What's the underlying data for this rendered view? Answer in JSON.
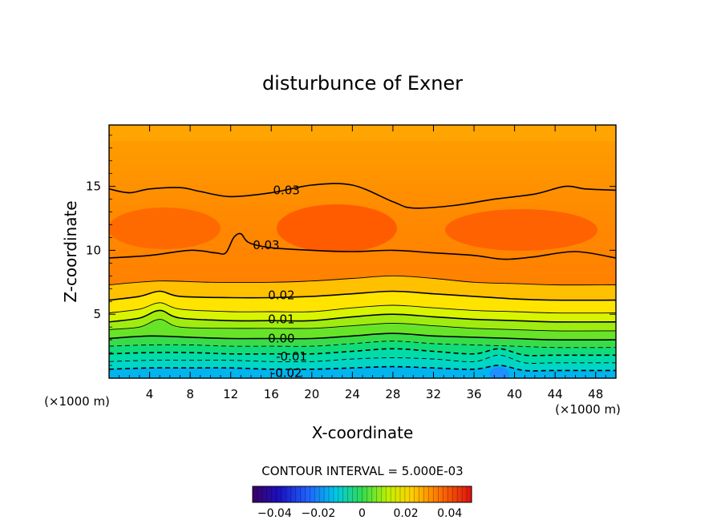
{
  "chart_data": {
    "type": "heatmap",
    "title": "disturbunce of Exner",
    "xlabel": "X-coordinate",
    "ylabel": "Z-coordinate",
    "x_unit_left": "(×1000 m)",
    "x_unit_right": "(×1000 m)",
    "xlim": [
      0,
      50
    ],
    "ylim": [
      0,
      19.8
    ],
    "x_ticks": [
      4,
      8,
      12,
      16,
      20,
      24,
      28,
      32,
      36,
      40,
      44,
      48
    ],
    "y_ticks": [
      5,
      10,
      15
    ],
    "contour_interval_text": "CONTOUR INTERVAL = 5.000E-03",
    "colorbar": {
      "min": -0.05,
      "max": 0.05,
      "ticks": [
        -0.04,
        -0.02,
        0,
        0.02,
        0.04
      ],
      "tick_labels": [
        "−0.04",
        "−0.02",
        "0",
        "0.02",
        "0.04"
      ]
    },
    "contour_labels": [
      {
        "text": "0.03",
        "x": 17.5,
        "z": 14.7
      },
      {
        "text": "0.03",
        "x": 15.5,
        "z": 10.4
      },
      {
        "text": "0.02",
        "x": 17.0,
        "z": 6.5
      },
      {
        "text": "0.01",
        "x": 17.0,
        "z": 4.6
      },
      {
        "text": "0.00",
        "x": 17.0,
        "z": 3.1
      },
      {
        "text": "-0.01",
        "x": 18.0,
        "z": 1.7
      },
      {
        "text": "-0.02",
        "x": 17.5,
        "z": 0.4
      }
    ],
    "contour_levels": [
      {
        "level": -0.02,
        "dashed": true,
        "points": [
          [
            0,
            0.7
          ],
          [
            4,
            0.8
          ],
          [
            8,
            0.8
          ],
          [
            12,
            0.8
          ],
          [
            16,
            0.7
          ],
          [
            20,
            0.7
          ],
          [
            24,
            0.8
          ],
          [
            28,
            0.9
          ],
          [
            32,
            0.8
          ],
          [
            36,
            0.7
          ],
          [
            38.5,
            1.0
          ],
          [
            41,
            0.6
          ],
          [
            44,
            0.6
          ],
          [
            50,
            0.6
          ]
        ]
      },
      {
        "level": -0.015,
        "dashed": true,
        "points": [
          [
            0,
            1.3
          ],
          [
            4,
            1.4
          ],
          [
            8,
            1.4
          ],
          [
            12,
            1.4
          ],
          [
            16,
            1.3
          ],
          [
            20,
            1.3
          ],
          [
            24,
            1.5
          ],
          [
            28,
            1.6
          ],
          [
            32,
            1.5
          ],
          [
            36,
            1.3
          ],
          [
            38.5,
            1.8
          ],
          [
            41,
            1.2
          ],
          [
            44,
            1.2
          ],
          [
            50,
            1.2
          ]
        ]
      },
      {
        "level": -0.01,
        "dashed": true,
        "points": [
          [
            0,
            1.9
          ],
          [
            4,
            2.0
          ],
          [
            8,
            2.0
          ],
          [
            12,
            1.9
          ],
          [
            16,
            1.9
          ],
          [
            20,
            1.9
          ],
          [
            24,
            2.1
          ],
          [
            28,
            2.3
          ],
          [
            32,
            2.1
          ],
          [
            36,
            1.9
          ],
          [
            38.5,
            2.3
          ],
          [
            41,
            1.8
          ],
          [
            44,
            1.8
          ],
          [
            50,
            1.8
          ]
        ]
      },
      {
        "level": -0.005,
        "dashed": true,
        "points": [
          [
            0,
            2.5
          ],
          [
            4,
            2.6
          ],
          [
            8,
            2.6
          ],
          [
            12,
            2.5
          ],
          [
            16,
            2.5
          ],
          [
            20,
            2.5
          ],
          [
            24,
            2.7
          ],
          [
            28,
            2.9
          ],
          [
            32,
            2.7
          ],
          [
            36,
            2.6
          ],
          [
            40,
            2.5
          ],
          [
            44,
            2.4
          ],
          [
            50,
            2.4
          ]
        ]
      },
      {
        "level": 0.0,
        "dashed": false,
        "points": [
          [
            0,
            3.1
          ],
          [
            4,
            3.3
          ],
          [
            8,
            3.2
          ],
          [
            12,
            3.1
          ],
          [
            16,
            3.1
          ],
          [
            20,
            3.1
          ],
          [
            24,
            3.3
          ],
          [
            28,
            3.5
          ],
          [
            32,
            3.3
          ],
          [
            36,
            3.2
          ],
          [
            40,
            3.1
          ],
          [
            44,
            3.0
          ],
          [
            50,
            3.0
          ]
        ]
      },
      {
        "level": 0.005,
        "dashed": false,
        "points": [
          [
            0,
            3.8
          ],
          [
            3,
            4.0
          ],
          [
            5,
            4.6
          ],
          [
            7,
            4.0
          ],
          [
            12,
            3.9
          ],
          [
            16,
            3.9
          ],
          [
            20,
            3.9
          ],
          [
            24,
            4.1
          ],
          [
            28,
            4.3
          ],
          [
            32,
            4.1
          ],
          [
            36,
            3.9
          ],
          [
            40,
            3.8
          ],
          [
            44,
            3.7
          ],
          [
            50,
            3.7
          ]
        ]
      },
      {
        "level": 0.01,
        "dashed": false,
        "points": [
          [
            0,
            4.4
          ],
          [
            3,
            4.7
          ],
          [
            5,
            5.3
          ],
          [
            7,
            4.7
          ],
          [
            12,
            4.5
          ],
          [
            16,
            4.5
          ],
          [
            20,
            4.5
          ],
          [
            24,
            4.8
          ],
          [
            28,
            5.0
          ],
          [
            32,
            4.8
          ],
          [
            36,
            4.6
          ],
          [
            40,
            4.5
          ],
          [
            44,
            4.4
          ],
          [
            50,
            4.4
          ]
        ]
      },
      {
        "level": 0.015,
        "dashed": false,
        "points": [
          [
            0,
            5.1
          ],
          [
            3,
            5.4
          ],
          [
            5,
            5.9
          ],
          [
            7,
            5.4
          ],
          [
            12,
            5.2
          ],
          [
            16,
            5.2
          ],
          [
            20,
            5.2
          ],
          [
            24,
            5.5
          ],
          [
            28,
            5.7
          ],
          [
            32,
            5.5
          ],
          [
            36,
            5.3
          ],
          [
            40,
            5.2
          ],
          [
            44,
            5.1
          ],
          [
            50,
            5.1
          ]
        ]
      },
      {
        "level": 0.02,
        "dashed": false,
        "points": [
          [
            0,
            6.1
          ],
          [
            3,
            6.4
          ],
          [
            5,
            6.8
          ],
          [
            7,
            6.4
          ],
          [
            12,
            6.3
          ],
          [
            16,
            6.3
          ],
          [
            20,
            6.4
          ],
          [
            24,
            6.6
          ],
          [
            28,
            6.8
          ],
          [
            32,
            6.6
          ],
          [
            36,
            6.4
          ],
          [
            40,
            6.2
          ],
          [
            44,
            6.1
          ],
          [
            50,
            6.1
          ]
        ]
      },
      {
        "level": 0.025,
        "dashed": false,
        "points": [
          [
            0,
            7.3
          ],
          [
            5,
            7.6
          ],
          [
            10,
            7.5
          ],
          [
            16,
            7.5
          ],
          [
            20,
            7.6
          ],
          [
            24,
            7.8
          ],
          [
            28,
            8.0
          ],
          [
            32,
            7.8
          ],
          [
            36,
            7.5
          ],
          [
            40,
            7.4
          ],
          [
            44,
            7.3
          ],
          [
            50,
            7.3
          ]
        ]
      },
      {
        "level": 0.03,
        "dashed": false,
        "points": [
          [
            0,
            9.4
          ],
          [
            4,
            9.6
          ],
          [
            8,
            10.0
          ],
          [
            10.5,
            9.8
          ],
          [
            11.5,
            9.8
          ],
          [
            12.3,
            11.0
          ],
          [
            13,
            11.3
          ],
          [
            13.8,
            10.6
          ],
          [
            16,
            10.2
          ],
          [
            20,
            10.0
          ],
          [
            24,
            9.9
          ],
          [
            28,
            10.0
          ],
          [
            32,
            9.8
          ],
          [
            36,
            9.6
          ],
          [
            39,
            9.3
          ],
          [
            42,
            9.5
          ],
          [
            46,
            9.9
          ],
          [
            50,
            9.4
          ]
        ]
      },
      {
        "level": 0.03,
        "dashed": false,
        "points": [
          [
            0,
            14.8
          ],
          [
            2,
            14.5
          ],
          [
            4,
            14.8
          ],
          [
            7,
            14.9
          ],
          [
            9,
            14.6
          ],
          [
            12,
            14.2
          ],
          [
            16,
            14.5
          ],
          [
            20,
            15.1
          ],
          [
            24,
            15.1
          ],
          [
            28,
            13.8
          ],
          [
            30,
            13.3
          ],
          [
            34,
            13.5
          ],
          [
            38,
            14.0
          ],
          [
            42,
            14.4
          ],
          [
            45,
            15.0
          ],
          [
            47,
            14.8
          ],
          [
            50,
            14.7
          ]
        ]
      }
    ],
    "field_levels": [
      {
        "value": -0.025,
        "color": "#00a8f0"
      },
      {
        "value": -0.02,
        "color": "#00c4e6"
      },
      {
        "value": -0.015,
        "color": "#00d6c6"
      },
      {
        "value": -0.01,
        "color": "#00dca8"
      },
      {
        "value": -0.005,
        "color": "#10dc7a"
      },
      {
        "value": 0.0,
        "color": "#38dc48"
      },
      {
        "value": 0.005,
        "color": "#68e428"
      },
      {
        "value": 0.01,
        "color": "#a0ec10"
      },
      {
        "value": 0.015,
        "color": "#d8f400"
      },
      {
        "value": 0.02,
        "color": "#ffe400"
      },
      {
        "value": 0.025,
        "color": "#ffc000"
      },
      {
        "value": 0.03,
        "color": "#ffa000"
      },
      {
        "value": 0.035,
        "color": "#ff7c00"
      },
      {
        "value": 0.04,
        "color": "#ff5a00"
      }
    ]
  }
}
